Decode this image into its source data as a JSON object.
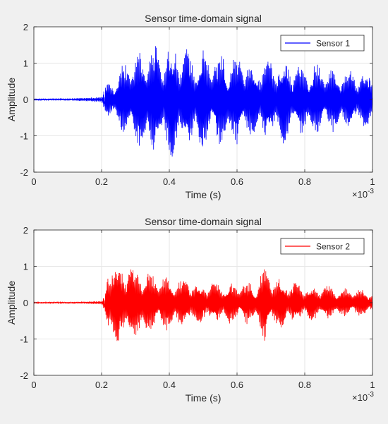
{
  "chart_data": [
    {
      "type": "line",
      "title": "Sensor time-domain signal",
      "xlabel": "Time (s)",
      "ylabel": "Amplitude",
      "x_exponent_label": "×10",
      "x_exponent_power": "-3",
      "xlim": [
        0,
        1
      ],
      "ylim": [
        -2,
        2
      ],
      "xticks": [
        "0",
        "0.2",
        "0.4",
        "0.6",
        "0.8",
        "1"
      ],
      "yticks": [
        "2",
        "1",
        "0",
        "-1",
        "-2"
      ],
      "grid": true,
      "legend_position": "top-right",
      "series": [
        {
          "name": "Sensor 1",
          "color": "#0000ff",
          "onset": 0.21,
          "x": [
            0,
            0.05,
            0.1,
            0.15,
            0.2,
            0.21,
            0.22,
            0.23,
            0.24,
            0.26,
            0.28,
            0.3,
            0.32,
            0.34,
            0.36,
            0.38,
            0.4,
            0.42,
            0.44,
            0.46,
            0.48,
            0.5,
            0.52,
            0.54,
            0.56,
            0.58,
            0.6,
            0.62,
            0.64,
            0.66,
            0.68,
            0.7,
            0.72,
            0.74,
            0.76,
            0.78,
            0.8,
            0.82,
            0.84,
            0.86,
            0.88,
            0.9,
            0.92,
            0.94,
            0.96,
            0.98,
            1.0
          ],
          "envelope": [
            0.03,
            0.03,
            0.03,
            0.05,
            0.08,
            0.4,
            0.55,
            0.5,
            0.6,
            1.0,
            1.2,
            1.3,
            1.5,
            1.7,
            1.5,
            1.4,
            1.6,
            1.7,
            1.4,
            1.4,
            1.3,
            1.6,
            1.3,
            1.2,
            1.5,
            1.2,
            1.3,
            1.3,
            1.1,
            1.0,
            1.3,
            1.1,
            1.2,
            1.3,
            1.0,
            1.0,
            1.0,
            1.0,
            1.0,
            0.9,
            0.9,
            0.9,
            0.9,
            0.8,
            0.8,
            0.8,
            0.8
          ]
        }
      ]
    },
    {
      "type": "line",
      "title": "Sensor time-domain signal",
      "xlabel": "Time (s)",
      "ylabel": "Amplitude",
      "x_exponent_label": "×10",
      "x_exponent_power": "-3",
      "xlim": [
        0,
        1
      ],
      "ylim": [
        -2,
        2
      ],
      "xticks": [
        "0",
        "0.2",
        "0.4",
        "0.6",
        "0.8",
        "1"
      ],
      "yticks": [
        "2",
        "1",
        "0",
        "-1",
        "-2"
      ],
      "grid": true,
      "legend_position": "top-right",
      "series": [
        {
          "name": "Sensor 2",
          "color": "#ff0000",
          "onset": 0.21,
          "x": [
            0,
            0.05,
            0.1,
            0.15,
            0.2,
            0.21,
            0.22,
            0.23,
            0.24,
            0.26,
            0.28,
            0.3,
            0.32,
            0.34,
            0.36,
            0.38,
            0.4,
            0.42,
            0.44,
            0.46,
            0.48,
            0.5,
            0.52,
            0.54,
            0.56,
            0.58,
            0.6,
            0.62,
            0.64,
            0.66,
            0.68,
            0.7,
            0.72,
            0.74,
            0.76,
            0.78,
            0.8,
            0.82,
            0.84,
            0.86,
            0.88,
            0.9,
            0.92,
            0.94,
            0.96,
            0.98,
            1.0
          ],
          "envelope": [
            0.02,
            0.02,
            0.02,
            0.03,
            0.05,
            0.3,
            1.3,
            1.3,
            1.2,
            1.0,
            1.3,
            1.0,
            1.0,
            0.9,
            0.8,
            0.8,
            0.8,
            0.7,
            0.7,
            0.7,
            0.6,
            0.6,
            0.6,
            0.6,
            0.6,
            0.6,
            0.6,
            0.6,
            0.6,
            0.6,
            1.2,
            0.8,
            0.7,
            0.7,
            0.6,
            0.6,
            0.5,
            0.5,
            0.5,
            0.5,
            0.5,
            0.4,
            0.4,
            0.4,
            0.4,
            0.4,
            0.3
          ]
        }
      ]
    }
  ]
}
